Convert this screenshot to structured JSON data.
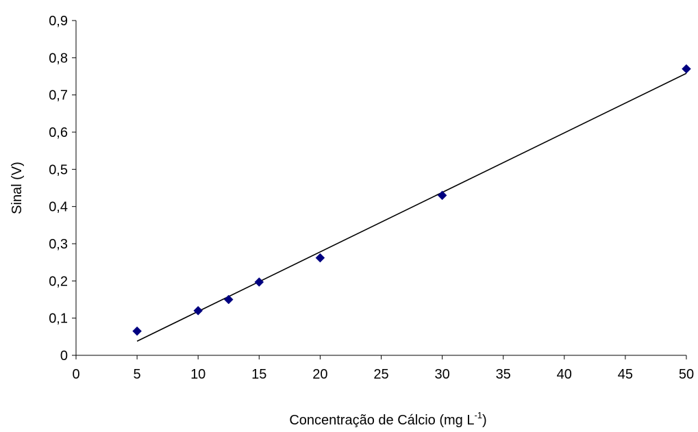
{
  "chart_data": {
    "type": "scatter",
    "xlabel": "Concentração de Cálcio (mg L",
    "xlabel_sup": "-1",
    "xlabel_suffix": ")",
    "ylabel": "Sinal (V)",
    "xlim": [
      0,
      50
    ],
    "ylim": [
      0,
      0.9
    ],
    "xticks": [
      0,
      5,
      10,
      15,
      20,
      25,
      30,
      35,
      40,
      45,
      50
    ],
    "xtick_labels": [
      "0",
      "5",
      "10",
      "15",
      "20",
      "25",
      "30",
      "35",
      "40",
      "45",
      "50"
    ],
    "yticks": [
      0,
      0.1,
      0.2,
      0.3,
      0.4,
      0.5,
      0.6,
      0.7,
      0.8,
      0.9
    ],
    "ytick_labels": [
      "0",
      "0,1",
      "0,2",
      "0,3",
      "0,4",
      "0,5",
      "0,6",
      "0,7",
      "0,8",
      "0,9"
    ],
    "grid": false,
    "series": [
      {
        "x": [
          5,
          10,
          12.5,
          15,
          20,
          30,
          50
        ],
        "y": [
          0.065,
          0.12,
          0.15,
          0.197,
          0.262,
          0.43,
          0.77
        ],
        "marker": "diamond",
        "color": "#000080"
      }
    ],
    "trendline": {
      "x": [
        5,
        50
      ],
      "y": [
        0.038,
        0.758
      ],
      "color": "#000000"
    }
  }
}
